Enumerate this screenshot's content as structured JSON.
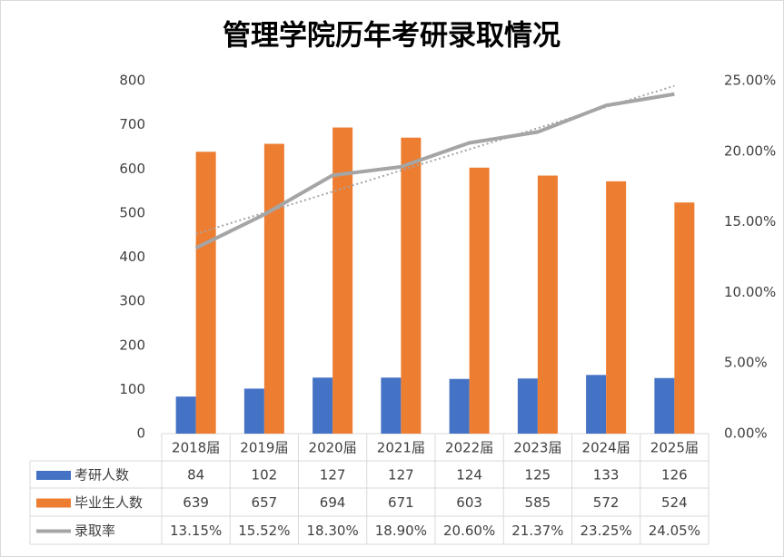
{
  "chart_data": {
    "type": "bar-line-table",
    "title": "管理学院历年考研录取情况",
    "categories": [
      "2018届",
      "2019届",
      "2020届",
      "2021届",
      "2022届",
      "2023届",
      "2024届",
      "2025届"
    ],
    "series": [
      {
        "name": "考研人数",
        "type": "bar",
        "color": "#4472c4",
        "values": [
          84,
          102,
          127,
          127,
          124,
          125,
          133,
          126
        ]
      },
      {
        "name": "毕业生人数",
        "type": "bar",
        "color": "#ed7d31",
        "values": [
          639,
          657,
          694,
          671,
          603,
          585,
          572,
          524
        ]
      },
      {
        "name": "录取率",
        "type": "line",
        "axis": "y2",
        "color": "#a5a5a5",
        "trendline": true,
        "values": [
          13.15,
          15.52,
          18.3,
          18.9,
          20.6,
          21.37,
          23.25,
          24.05
        ],
        "value_labels": [
          "13.15%",
          "15.52%",
          "18.30%",
          "18.90%",
          "20.60%",
          "21.37%",
          "23.25%",
          "24.05%"
        ]
      }
    ],
    "ylim": [
      0,
      800
    ],
    "yticks": [
      0,
      100,
      200,
      300,
      400,
      500,
      600,
      700,
      800
    ],
    "y2lim": [
      0,
      25
    ],
    "y2ticks": [
      {
        "value": 0,
        "label": "0.00%"
      },
      {
        "value": 5,
        "label": "5.00%"
      },
      {
        "value": 10,
        "label": "10.00%"
      },
      {
        "value": 15,
        "label": "15.00%"
      },
      {
        "value": 20,
        "label": "20.00%"
      },
      {
        "value": 25,
        "label": "25.00%"
      }
    ],
    "grid": false
  }
}
